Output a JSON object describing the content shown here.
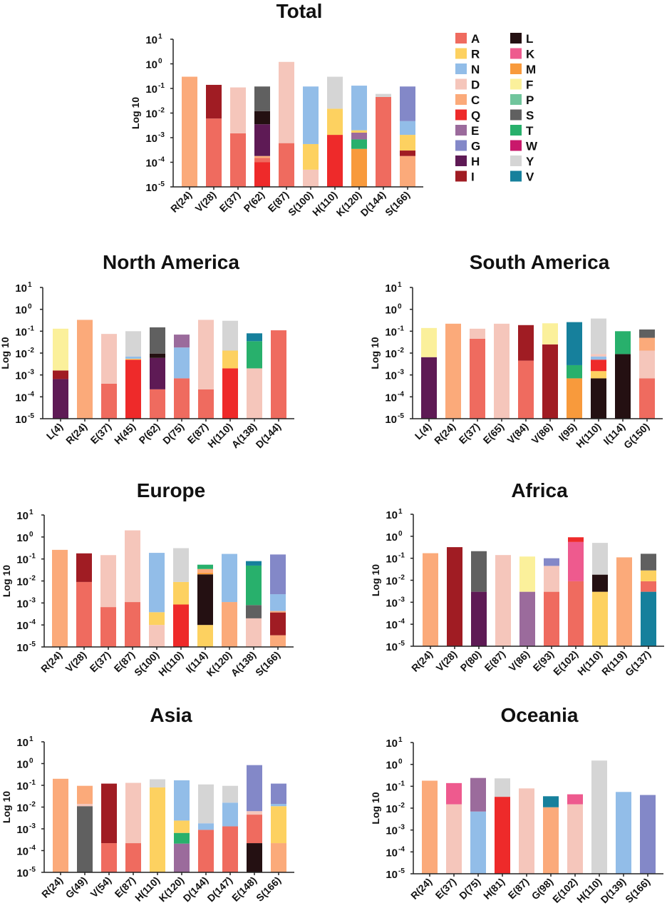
{
  "colors": {
    "A": "#ef6b5f",
    "R": "#fdd160",
    "N": "#92bde8",
    "D": "#f5c6bb",
    "C": "#fbaa7a",
    "Q": "#ee2a2a",
    "E": "#9b6b9c",
    "G": "#8388c8",
    "H": "#5e1a55",
    "I": "#a01c23",
    "L": "#241012",
    "K": "#ee5a8e",
    "M": "#f89a3c",
    "F": "#fbf09b",
    "P": "#70c59c",
    "S": "#606060",
    "T": "#28b06c",
    "W": "#c9186b",
    "Y": "#d5d5d5",
    "V": "#16809c"
  },
  "legend": {
    "columns": [
      [
        "A",
        "R",
        "N",
        "D",
        "C",
        "Q",
        "E",
        "G",
        "H",
        "I"
      ],
      [
        "L",
        "K",
        "M",
        "F",
        "P",
        "S",
        "T",
        "W",
        "Y",
        "V"
      ]
    ]
  },
  "chart_data": [
    {
      "type": "bar",
      "stacked": true,
      "title": "Total",
      "ylabel": "Log 10",
      "yscale": "log",
      "ylim": [
        1e-05,
        10
      ],
      "yticks": [
        1,
        0,
        -1,
        -2,
        -3,
        -4,
        -5
      ],
      "tick_base": "10",
      "categories": [
        "R(24)",
        "V(28)",
        "E(37)",
        "P(62)",
        "E(87)",
        "S(100)",
        "H(110)",
        "K(120)",
        "D(144)",
        "S(166)"
      ],
      "bars": [
        [
          [
            "C",
            0.3
          ]
        ],
        [
          [
            "A",
            0.006
          ],
          [
            "I",
            0.14
          ]
        ],
        [
          [
            "A",
            0.0015
          ],
          [
            "D",
            0.11
          ]
        ],
        [
          [
            "Q",
            0.0001
          ],
          [
            "A",
            0.00015
          ],
          [
            "C",
            0.00018
          ],
          [
            "H",
            0.0035
          ],
          [
            "L",
            0.012
          ],
          [
            "S",
            0.12
          ]
        ],
        [
          [
            "A",
            0.0006
          ],
          [
            "D",
            1.2
          ]
        ],
        [
          [
            "D",
            5e-05
          ],
          [
            "R",
            0.00055
          ],
          [
            "N",
            0.12
          ]
        ],
        [
          [
            "Q",
            0.0013
          ],
          [
            "R",
            0.015
          ],
          [
            "Y",
            0.3
          ]
        ],
        [
          [
            "M",
            0.00035
          ],
          [
            "T",
            0.00085
          ],
          [
            "E",
            0.0016
          ],
          [
            "R",
            0.002
          ],
          [
            "N",
            0.13
          ]
        ],
        [
          [
            "A",
            0.045
          ],
          [
            "Y",
            0.06
          ]
        ],
        [
          [
            "C",
            0.00018
          ],
          [
            "I",
            0.0003
          ],
          [
            "R",
            0.0013
          ],
          [
            "N",
            0.0047
          ],
          [
            "G",
            0.12
          ]
        ]
      ]
    },
    {
      "type": "bar",
      "stacked": true,
      "title": "North America",
      "ylabel": "Log 10",
      "yscale": "log",
      "ylim": [
        1e-05,
        10
      ],
      "yticks": [
        1,
        0,
        -1,
        -2,
        -3,
        -4,
        -5
      ],
      "tick_base": "10",
      "categories": [
        "L(4)",
        "R(24)",
        "E(37)",
        "H(45)",
        "P(62)",
        "D(75)",
        "E(87)",
        "H(110)",
        "A(138)",
        "D(144)"
      ],
      "bars": [
        [
          [
            "H",
            0.00065
          ],
          [
            "I",
            0.0016
          ],
          [
            "F",
            0.13
          ]
        ],
        [
          [
            "C",
            0.33
          ]
        ],
        [
          [
            "A",
            0.0004
          ],
          [
            "D",
            0.075
          ]
        ],
        [
          [
            "Q",
            0.005
          ],
          [
            "R",
            0.0055
          ],
          [
            "N",
            0.007
          ],
          [
            "Y",
            0.1
          ]
        ],
        [
          [
            "A",
            0.00022
          ],
          [
            "H",
            0.006
          ],
          [
            "L",
            0.0095
          ],
          [
            "S",
            0.15
          ]
        ],
        [
          [
            "A",
            0.0007
          ],
          [
            "N",
            0.018
          ],
          [
            "E",
            0.07
          ]
        ],
        [
          [
            "A",
            0.00022
          ],
          [
            "D",
            0.33
          ]
        ],
        [
          [
            "Q",
            0.002
          ],
          [
            "R",
            0.013
          ],
          [
            "Y",
            0.3
          ]
        ],
        [
          [
            "D",
            0.002
          ],
          [
            "T",
            0.035
          ],
          [
            "V",
            0.08
          ]
        ],
        [
          [
            "A",
            0.11
          ]
        ]
      ]
    },
    {
      "type": "bar",
      "stacked": true,
      "title": "South America",
      "ylabel": "Log 10",
      "yscale": "log",
      "ylim": [
        1e-05,
        10
      ],
      "yticks": [
        1,
        0,
        -1,
        -2,
        -3,
        -4,
        -5
      ],
      "tick_base": "10",
      "categories": [
        "L(4)",
        "R(24)",
        "E(37)",
        "E(65)",
        "V(84)",
        "V(86)",
        "I(95)",
        "H(110)",
        "I(114)",
        "G(150)"
      ],
      "bars": [
        [
          [
            "H",
            0.0065
          ],
          [
            "F",
            0.14
          ]
        ],
        [
          [
            "C",
            0.22
          ]
        ],
        [
          [
            "A",
            0.045
          ],
          [
            "D",
            0.13
          ]
        ],
        [
          [
            "D",
            0.22
          ]
        ],
        [
          [
            "A",
            0.0045
          ],
          [
            "I",
            0.19
          ]
        ],
        [
          [
            "I",
            0.025
          ],
          [
            "F",
            0.23
          ]
        ],
        [
          [
            "M",
            0.0007
          ],
          [
            "T",
            0.0028
          ],
          [
            "V",
            0.26
          ]
        ],
        [
          [
            "L",
            0.0007
          ],
          [
            "R",
            0.0015
          ],
          [
            "Q",
            0.005
          ],
          [
            "N",
            0.007
          ],
          [
            "D",
            0.009
          ],
          [
            "Y",
            0.38
          ]
        ],
        [
          [
            "L",
            0.009
          ],
          [
            "T",
            0.1
          ]
        ],
        [
          [
            "A",
            0.0007
          ],
          [
            "D",
            0.013
          ],
          [
            "C",
            0.05
          ],
          [
            "S",
            0.12
          ]
        ]
      ]
    },
    {
      "type": "bar",
      "stacked": true,
      "title": "Europe",
      "ylabel": "Log 10",
      "yscale": "log",
      "ylim": [
        1e-05,
        10
      ],
      "yticks": [
        1,
        0,
        -1,
        -2,
        -3,
        -4,
        -5
      ],
      "tick_base": "10",
      "categories": [
        "R(24)",
        "V(28)",
        "E(37)",
        "E(87)",
        "S(100)",
        "H(110)",
        "I(114)",
        "K(120)",
        "A(138)",
        "S(166)"
      ],
      "bars": [
        [
          [
            "C",
            0.26
          ]
        ],
        [
          [
            "A",
            0.009
          ],
          [
            "I",
            0.18
          ]
        ],
        [
          [
            "A",
            0.00065
          ],
          [
            "D",
            0.15
          ]
        ],
        [
          [
            "A",
            0.0011
          ],
          [
            "D",
            2.0
          ]
        ],
        [
          [
            "D",
            0.0001
          ],
          [
            "R",
            0.00038
          ],
          [
            "N",
            0.19
          ]
        ],
        [
          [
            "Q",
            0.00085
          ],
          [
            "R",
            0.009
          ],
          [
            "Y",
            0.31
          ]
        ],
        [
          [
            "R",
            0.0001
          ],
          [
            "L",
            0.02
          ],
          [
            "M",
            0.024
          ],
          [
            "C",
            0.035
          ],
          [
            "T",
            0.055
          ]
        ],
        [
          [
            "C",
            0.0011
          ],
          [
            "N",
            0.17
          ]
        ],
        [
          [
            "D",
            0.0002
          ],
          [
            "S",
            0.0008
          ],
          [
            "T",
            0.05
          ],
          [
            "V",
            0.08
          ]
        ],
        [
          [
            "C",
            3.4e-05
          ],
          [
            "I",
            0.00037
          ],
          [
            "C",
            0.00043
          ],
          [
            "N",
            0.0025
          ],
          [
            "G",
            0.16
          ]
        ]
      ]
    },
    {
      "type": "bar",
      "stacked": true,
      "title": "Africa",
      "ylabel": "Log 10",
      "yscale": "log",
      "ylim": [
        1e-05,
        10
      ],
      "yticks": [
        1,
        0,
        -1,
        -2,
        -3,
        -4,
        -5
      ],
      "tick_base": "10",
      "categories": [
        "R(24)",
        "V(28)",
        "P(80)",
        "E(87)",
        "V(86)",
        "E(93)",
        "E(102)",
        "H(110)",
        "R(119)",
        "G(137)"
      ],
      "bars": [
        [
          [
            "C",
            0.17
          ]
        ],
        [
          [
            "I",
            0.32
          ]
        ],
        [
          [
            "H",
            0.003
          ],
          [
            "S",
            0.21
          ]
        ],
        [
          [
            "D",
            0.14
          ]
        ],
        [
          [
            "E",
            0.003
          ],
          [
            "F",
            0.12
          ]
        ],
        [
          [
            "A",
            0.003
          ],
          [
            "D",
            0.045
          ],
          [
            "G",
            0.1
          ]
        ],
        [
          [
            "A",
            0.009
          ],
          [
            "K",
            0.55
          ],
          [
            "Q",
            0.9
          ]
        ],
        [
          [
            "R",
            0.003
          ],
          [
            "L",
            0.018
          ],
          [
            "Y",
            0.5
          ]
        ],
        [
          [
            "C",
            0.11
          ]
        ],
        [
          [
            "V",
            0.003
          ],
          [
            "A",
            0.009
          ],
          [
            "R",
            0.028
          ],
          [
            "S",
            0.16
          ]
        ]
      ]
    },
    {
      "type": "bar",
      "stacked": true,
      "title": "Asia",
      "ylabel": "Log 10",
      "yscale": "log",
      "ylim": [
        1e-05,
        10
      ],
      "yticks": [
        1,
        0,
        -1,
        -2,
        -3,
        -4,
        -5
      ],
      "tick_base": "10",
      "categories": [
        "R(24)",
        "G(49)",
        "V(54)",
        "E(87)",
        "H(110)",
        "K(120)",
        "D(144)",
        "D(147)",
        "E(148)",
        "S(166)"
      ],
      "bars": [
        [
          [
            "C",
            0.2
          ]
        ],
        [
          [
            "S",
            0.011
          ],
          [
            "D",
            0.014
          ],
          [
            "C",
            0.095
          ]
        ],
        [
          [
            "A",
            0.00022
          ],
          [
            "I",
            0.12
          ]
        ],
        [
          [
            "A",
            0.00022
          ],
          [
            "D",
            0.13
          ]
        ],
        [
          [
            "R",
            0.08
          ],
          [
            "Y",
            0.19
          ]
        ],
        [
          [
            "E",
            0.00021
          ],
          [
            "T",
            0.00065
          ],
          [
            "R",
            0.0024
          ],
          [
            "N",
            0.17
          ]
        ],
        [
          [
            "A",
            0.0009
          ],
          [
            "N",
            0.0018
          ],
          [
            "Y",
            0.11
          ]
        ],
        [
          [
            "A",
            0.0013
          ],
          [
            "N",
            0.016
          ],
          [
            "Y",
            0.095
          ]
        ],
        [
          [
            "L",
            0.00022
          ],
          [
            "A",
            0.0045
          ],
          [
            "D",
            0.0065
          ],
          [
            "G",
            0.85
          ]
        ],
        [
          [
            "C",
            0.00022
          ],
          [
            "R",
            0.011
          ],
          [
            "N",
            0.014
          ],
          [
            "G",
            0.12
          ]
        ]
      ]
    },
    {
      "type": "bar",
      "stacked": true,
      "title": "Oceania",
      "ylabel": "Log 10",
      "yscale": "log",
      "ylim": [
        1e-05,
        10
      ],
      "yticks": [
        1,
        0,
        -1,
        -2,
        -3,
        -4,
        -5
      ],
      "tick_base": "10",
      "categories": [
        "R(24)",
        "E(37)",
        "D(75)",
        "H(81)",
        "E(87)",
        "G(98)",
        "E(102)",
        "H(110)",
        "D(139)",
        "S(166)"
      ],
      "bars": [
        [
          [
            "C",
            0.18
          ]
        ],
        [
          [
            "D",
            0.015
          ],
          [
            "K",
            0.14
          ]
        ],
        [
          [
            "N",
            0.007
          ],
          [
            "E",
            0.24
          ]
        ],
        [
          [
            "Q",
            0.033
          ],
          [
            "Y",
            0.23
          ]
        ],
        [
          [
            "D",
            0.08
          ]
        ],
        [
          [
            "C",
            0.011
          ],
          [
            "V",
            0.035
          ]
        ],
        [
          [
            "D",
            0.015
          ],
          [
            "K",
            0.043
          ]
        ],
        [
          [
            "Y",
            1.5
          ]
        ],
        [
          [
            "N",
            0.055
          ]
        ],
        [
          [
            "G",
            0.04
          ]
        ]
      ]
    }
  ]
}
